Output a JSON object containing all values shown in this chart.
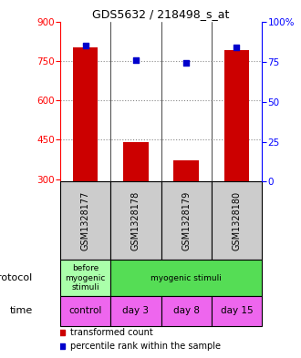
{
  "title": "GDS5632 / 218498_s_at",
  "samples": [
    "GSM1328177",
    "GSM1328178",
    "GSM1328179",
    "GSM1328180"
  ],
  "bar_values": [
    800,
    440,
    370,
    790
  ],
  "bar_base": 290,
  "percentile_values": [
    85,
    76,
    74,
    84
  ],
  "ylim_left": [
    290,
    900
  ],
  "ylim_right": [
    0,
    100
  ],
  "yticks_left": [
    300,
    450,
    600,
    750,
    900
  ],
  "yticks_right": [
    0,
    25,
    50,
    75,
    100
  ],
  "bar_color": "#cc0000",
  "dot_color": "#0000cc",
  "grid_color": "#888888",
  "protocol_colors": [
    "#aaffaa",
    "#55dd55"
  ],
  "protocol_labels": [
    "before\nmyogenic\nstimuli",
    "myogenic stimuli"
  ],
  "protocol_spans": [
    1,
    3
  ],
  "time_color": "#ee66ee",
  "time_labels": [
    "control",
    "day 3",
    "day 8",
    "day 15"
  ],
  "legend_red": "transformed count",
  "legend_blue": "percentile rank within the sample",
  "xlabel_protocol": "protocol",
  "xlabel_time": "time",
  "sample_bg_color": "#cccccc",
  "bar_width": 0.5
}
